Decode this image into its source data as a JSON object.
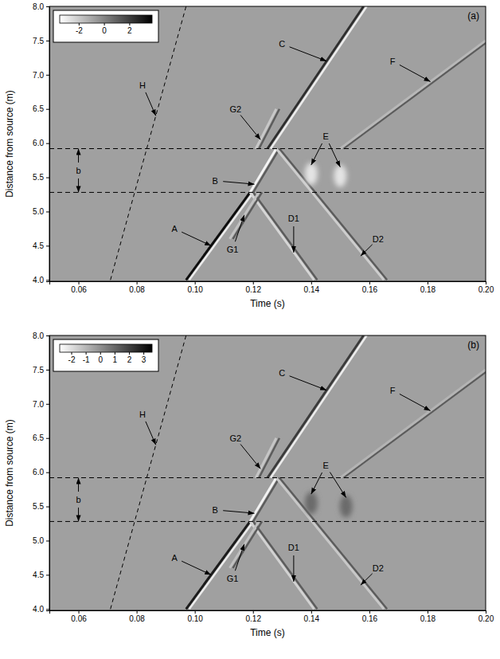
{
  "chart_data": [
    {
      "type": "line",
      "panel_label": "(a)",
      "x_label": "Time (s)",
      "y_label": "Distance from source (m)",
      "xlim": [
        0.05,
        0.2
      ],
      "xticks": [
        0.06,
        0.08,
        {
          "value": 0.1,
          "label": "0.10"
        },
        0.12,
        0.14,
        0.16,
        0.18,
        {
          "value": 0.2,
          "label": "0.20"
        }
      ],
      "ylim": [
        3.98,
        8.0
      ],
      "yticks": [
        {
          "value": 4,
          "label": "4.0"
        },
        4.5,
        {
          "value": 5,
          "label": "5.0"
        },
        5.5,
        {
          "value": 6,
          "label": "6.0"
        },
        6.5,
        {
          "value": 7,
          "label": "7.0"
        },
        7.5,
        {
          "value": 8,
          "label": "8.0"
        }
      ],
      "colorbar": {
        "range": [
          -3.5,
          3.8
        ],
        "ticks": [
          -2,
          0,
          2
        ]
      },
      "hlines": [
        5.28,
        5.92
      ],
      "series": [
        {
          "color": "#111111",
          "line_style": "solid",
          "x": [
            0.097,
            0.119
          ],
          "values": [
            4.0,
            5.28
          ]
        },
        {
          "color": "#f4f4f4",
          "line_style": "solid",
          "x": [
            0.119,
            0.128
          ],
          "values": [
            5.28,
            5.92
          ]
        },
        {
          "color": "#2e2e2e",
          "line_style": "solid",
          "x": [
            0.125,
            0.158
          ],
          "values": [
            5.92,
            8.0
          ]
        },
        {
          "color": "#d6d6d6",
          "line_style": "solid",
          "x": [
            0.119,
            0.141
          ],
          "values": [
            5.28,
            4.0
          ]
        },
        {
          "color": "#cdcdcd",
          "line_style": "solid",
          "x": [
            0.128,
            0.165
          ],
          "values": [
            5.92,
            4.0
          ]
        },
        {
          "color": "#b8b8b8",
          "line_style": "solid",
          "x": [
            0.15,
            0.2
          ],
          "values": [
            5.92,
            7.5
          ]
        },
        {
          "color": "#c2c2c2",
          "line_style": "solid",
          "x": [
            0.112,
            0.122
          ],
          "values": [
            4.6,
            5.28
          ]
        },
        {
          "color": "#c8c8c8",
          "line_style": "solid",
          "x": [
            0.121,
            0.128
          ],
          "values": [
            5.92,
            6.5
          ]
        },
        {
          "color": "#000000",
          "line_style": "dashed",
          "x": [
            0.071,
            0.097
          ],
          "values": [
            4.0,
            8.0
          ]
        },
        {
          "type": "scatter",
          "marker": "ellipse",
          "color": "#e4e4e4",
          "x": [
            0.14,
            0.15
          ],
          "values": [
            5.55,
            5.52
          ]
        }
      ],
      "annotations": [
        {
          "text": "H",
          "x": 0.082,
          "y": 6.85,
          "target_x": [
            0.0866
          ],
          "target_y": [
            6.4
          ]
        },
        {
          "text": "A",
          "x": 0.093,
          "y": 4.75,
          "target_x": [
            0.1056
          ],
          "target_y": [
            4.5
          ]
        },
        {
          "text": "B",
          "x": 0.107,
          "y": 5.45,
          "target_x": [
            0.1205
          ],
          "target_y": [
            5.4
          ]
        },
        {
          "text": "C",
          "x": 0.13,
          "y": 7.45,
          "target_x": [
            0.1453
          ],
          "target_y": [
            7.2
          ]
        },
        {
          "text": "G2",
          "x": 0.114,
          "y": 6.5,
          "target_x": [
            0.1226
          ],
          "target_y": [
            6.05
          ]
        },
        {
          "text": "G1",
          "x": 0.113,
          "y": 4.45,
          "target_x": [
            0.117
          ],
          "target_y": [
            4.95
          ]
        },
        {
          "text": "D1",
          "x": 0.134,
          "y": 4.9,
          "target_x": [
            0.134
          ],
          "target_y": [
            4.4
          ]
        },
        {
          "text": "D2",
          "x": 0.163,
          "y": 4.6,
          "target_x": [
            0.157
          ],
          "target_y": [
            4.35
          ]
        },
        {
          "text": "E",
          "x": 0.145,
          "y": 6.1,
          "target_x": [
            0.14,
            0.15
          ],
          "target_y": [
            5.68,
            5.65
          ]
        },
        {
          "text": "F",
          "x": 0.168,
          "y": 7.2,
          "target_x": [
            0.181
          ],
          "target_y": [
            6.9
          ]
        },
        {
          "text": "b",
          "x": 0.06,
          "y": 5.6,
          "target_x": [
            0.06,
            0.06
          ],
          "target_y": [
            5.92,
            5.28
          ]
        }
      ]
    },
    {
      "type": "line",
      "panel_label": "(b)",
      "x_label": "Time (s)",
      "y_label": "Distance from source (m)",
      "xlim": [
        0.05,
        0.2
      ],
      "xticks": [
        0.06,
        0.08,
        {
          "value": 0.1,
          "label": "0.10"
        },
        0.12,
        0.14,
        0.16,
        0.18,
        {
          "value": 0.2,
          "label": "0.20"
        }
      ],
      "ylim": [
        3.98,
        8.0
      ],
      "yticks": [
        {
          "value": 4,
          "label": "4.0"
        },
        4.5,
        {
          "value": 5,
          "label": "5.0"
        },
        5.5,
        {
          "value": 6,
          "label": "6.0"
        },
        6.5,
        {
          "value": 7,
          "label": "7.0"
        },
        7.5,
        {
          "value": 8,
          "label": "8.0"
        }
      ],
      "colorbar": {
        "range": [
          -2.8,
          3.6
        ],
        "ticks": [
          -2,
          -1,
          0,
          1,
          2,
          3
        ]
      },
      "hlines": [
        5.28,
        5.92
      ],
      "series": [
        {
          "color": "#1a1a1a",
          "line_style": "solid",
          "x": [
            0.097,
            0.119
          ],
          "values": [
            4.0,
            5.28
          ]
        },
        {
          "color": "#f2f2f2",
          "line_style": "solid",
          "x": [
            0.119,
            0.128
          ],
          "values": [
            5.28,
            5.92
          ]
        },
        {
          "color": "#3a3a3a",
          "line_style": "solid",
          "x": [
            0.125,
            0.158
          ],
          "values": [
            5.92,
            8.0
          ]
        },
        {
          "color": "#d2d2d2",
          "line_style": "solid",
          "x": [
            0.119,
            0.141
          ],
          "values": [
            5.28,
            4.0
          ]
        },
        {
          "color": "#c8c8c8",
          "line_style": "solid",
          "x": [
            0.128,
            0.165
          ],
          "values": [
            5.92,
            4.0
          ]
        },
        {
          "color": "#b4b4b4",
          "line_style": "solid",
          "x": [
            0.15,
            0.2
          ],
          "values": [
            5.92,
            7.5
          ]
        },
        {
          "color": "#c0c0c0",
          "line_style": "solid",
          "x": [
            0.112,
            0.122
          ],
          "values": [
            4.6,
            5.28
          ]
        },
        {
          "color": "#c6c6c6",
          "line_style": "solid",
          "x": [
            0.121,
            0.128
          ],
          "values": [
            5.92,
            6.5
          ]
        },
        {
          "color": "#000000",
          "line_style": "dashed",
          "x": [
            0.071,
            0.097
          ],
          "values": [
            4.0,
            8.0
          ]
        },
        {
          "type": "scatter",
          "marker": "ellipse",
          "color": "#6a6a6a",
          "x": [
            0.14,
            0.152
          ],
          "values": [
            5.55,
            5.5
          ]
        }
      ],
      "annotations": [
        {
          "text": "H",
          "x": 0.082,
          "y": 6.85,
          "target_x": [
            0.0866
          ],
          "target_y": [
            6.4
          ]
        },
        {
          "text": "A",
          "x": 0.093,
          "y": 4.75,
          "target_x": [
            0.1056
          ],
          "target_y": [
            4.5
          ]
        },
        {
          "text": "B",
          "x": 0.107,
          "y": 5.45,
          "target_x": [
            0.1205
          ],
          "target_y": [
            5.4
          ]
        },
        {
          "text": "C",
          "x": 0.13,
          "y": 7.45,
          "target_x": [
            0.1453
          ],
          "target_y": [
            7.2
          ]
        },
        {
          "text": "G2",
          "x": 0.114,
          "y": 6.5,
          "target_x": [
            0.1226
          ],
          "target_y": [
            6.05
          ]
        },
        {
          "text": "G1",
          "x": 0.113,
          "y": 4.45,
          "target_x": [
            0.117
          ],
          "target_y": [
            4.95
          ]
        },
        {
          "text": "D1",
          "x": 0.134,
          "y": 4.9,
          "target_x": [
            0.134
          ],
          "target_y": [
            4.4
          ]
        },
        {
          "text": "D2",
          "x": 0.163,
          "y": 4.6,
          "target_x": [
            0.157
          ],
          "target_y": [
            4.35
          ]
        },
        {
          "text": "E",
          "x": 0.145,
          "y": 6.1,
          "target_x": [
            0.14,
            0.152
          ],
          "target_y": [
            5.68,
            5.63
          ]
        },
        {
          "text": "F",
          "x": 0.168,
          "y": 7.2,
          "target_x": [
            0.181
          ],
          "target_y": [
            6.9
          ]
        },
        {
          "text": "b",
          "x": 0.06,
          "y": 5.6,
          "target_x": [
            0.06,
            0.06
          ],
          "target_y": [
            5.92,
            5.28
          ]
        }
      ]
    }
  ]
}
